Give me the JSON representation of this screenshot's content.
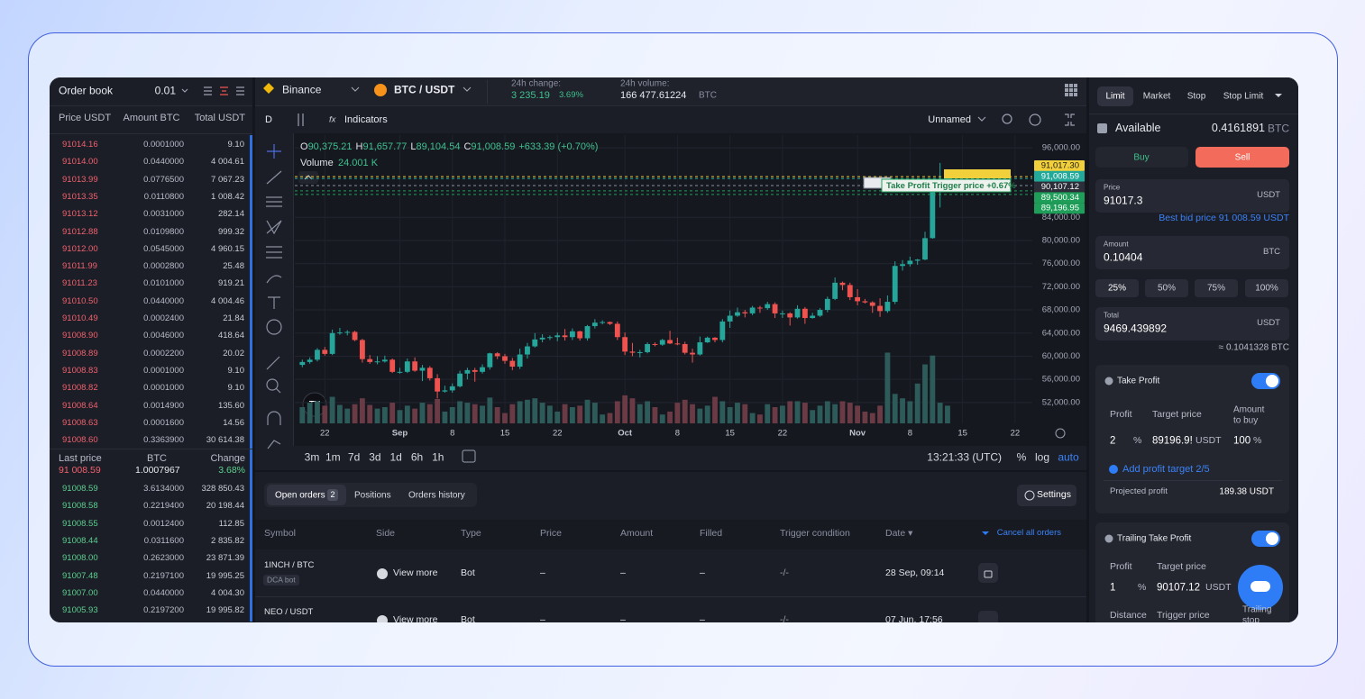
{
  "order_book": {
    "title": "Order book",
    "step": "0.01",
    "columns": [
      "Price USDT",
      "Amount BTC",
      "Total USDT"
    ],
    "asks": [
      [
        "91014.16",
        "0.0001000",
        "9.10"
      ],
      [
        "91014.00",
        "0.0440000",
        "4 004.61"
      ],
      [
        "91013.99",
        "0.0776500",
        "7 067.23"
      ],
      [
        "91013.35",
        "0.0110800",
        "1 008.42"
      ],
      [
        "91013.12",
        "0.0031000",
        "282.14"
      ],
      [
        "91012.88",
        "0.0109800",
        "999.32"
      ],
      [
        "91012.00",
        "0.0545000",
        "4 960.15"
      ],
      [
        "91011.99",
        "0.0002800",
        "25.48"
      ],
      [
        "91011.23",
        "0.0101000",
        "919.21"
      ],
      [
        "91010.50",
        "0.0440000",
        "4 004.46"
      ],
      [
        "91010.49",
        "0.0002400",
        "21.84"
      ],
      [
        "91008.90",
        "0.0046000",
        "418.64"
      ],
      [
        "91008.89",
        "0.0002200",
        "20.02"
      ],
      [
        "91008.83",
        "0.0001000",
        "9.10"
      ],
      [
        "91008.82",
        "0.0001000",
        "9.10"
      ],
      [
        "91008.64",
        "0.0014900",
        "135.60"
      ],
      [
        "91008.63",
        "0.0001600",
        "14.56"
      ],
      [
        "91008.60",
        "0.3363900",
        "30 614.38"
      ]
    ],
    "summary_labels": [
      "Last price",
      "BTC",
      "Change"
    ],
    "summary_values": [
      "91 008.59",
      "1.0007967",
      "3.68%"
    ],
    "bids": [
      [
        "91008.59",
        "3.6134000",
        "328 850.43"
      ],
      [
        "91008.58",
        "0.2219400",
        "20 198.44"
      ],
      [
        "91008.55",
        "0.0012400",
        "112.85"
      ],
      [
        "91008.44",
        "0.0311600",
        "2 835.82"
      ],
      [
        "91008.00",
        "0.2623000",
        "23 871.39"
      ],
      [
        "91007.48",
        "0.2197100",
        "19 995.25"
      ],
      [
        "91007.00",
        "0.0440000",
        "4 004.30"
      ],
      [
        "91005.93",
        "0.2197200",
        "19 995.82"
      ]
    ]
  },
  "top_bar": {
    "exchange": "Binance",
    "pair": "BTC / USDT",
    "change_label": "24h change:",
    "change_value": "3 235.19",
    "change_pct": "3.69%",
    "volume_label": "24h volume:",
    "volume_value": "166 477.61224",
    "volume_unit": "BTC"
  },
  "chart_toolbar": {
    "interval": "D",
    "indicators": "Indicators",
    "layout": "Unnamed"
  },
  "chart_data": {
    "type": "candlestick",
    "legend": [
      {
        "key": "O",
        "value": "90,375.21"
      },
      {
        "key": "H",
        "value": "91,657.77"
      },
      {
        "key": "L",
        "value": "89,104.54"
      },
      {
        "key": "C",
        "value": "91,008.59"
      }
    ],
    "change": "+633.39 (+0.70%)",
    "volume_label": "Volume",
    "volume_value": "24.001 K",
    "colors": {
      "up": "#26a69a",
      "down": "#ef5350",
      "volume_up": "#2d5b5a",
      "volume_down": "#6a3a45"
    },
    "grid": true,
    "xlim": [
      -1,
      97.3
    ],
    "xticks": [
      {
        "value": 3,
        "label": "22"
      },
      {
        "value": 13,
        "label": "Sep"
      },
      {
        "value": 20,
        "label": "8"
      },
      {
        "value": 27,
        "label": "15"
      },
      {
        "value": 34,
        "label": "22"
      },
      {
        "value": 43,
        "label": "Oct"
      },
      {
        "value": 50,
        "label": "8"
      },
      {
        "value": 57,
        "label": "15"
      },
      {
        "value": 64,
        "label": "22"
      },
      {
        "value": 74,
        "label": "Nov"
      },
      {
        "value": 81,
        "label": "8"
      },
      {
        "value": 88,
        "label": "15"
      },
      {
        "value": 95,
        "label": "22"
      }
    ],
    "ylim": [
      48400,
      98200
    ],
    "yticks": [
      {
        "value": 96000,
        "label": "96,000.00"
      },
      {
        "value": 84000,
        "label": "84,000.00"
      },
      {
        "value": 80000,
        "label": "80,000.00"
      },
      {
        "value": 76000,
        "label": "76,000.00"
      },
      {
        "value": 72000,
        "label": "72,000.00"
      },
      {
        "value": 68000,
        "label": "68,000.00"
      },
      {
        "value": 64000,
        "label": "64,000.00"
      },
      {
        "value": 60000,
        "label": "60,000.00"
      },
      {
        "value": 56000,
        "label": "56,000.00"
      },
      {
        "value": 52000,
        "label": "52,000.00"
      }
    ],
    "vlim": [
      0,
      110
    ],
    "candles": [
      [
        58500,
        59400,
        58100,
        59000
      ],
      [
        59000,
        59800,
        58700,
        59400
      ],
      [
        59400,
        61400,
        59100,
        61100
      ],
      [
        61100,
        61600,
        60100,
        60400
      ],
      [
        60400,
        64600,
        60200,
        64000
      ],
      [
        64000,
        64900,
        63700,
        64100
      ],
      [
        64100,
        64500,
        63600,
        64200
      ],
      [
        64200,
        64400,
        62600,
        62800
      ],
      [
        62800,
        63000,
        58900,
        59500
      ],
      [
        59500,
        60200,
        58700,
        59000
      ],
      [
        59000,
        60000,
        58600,
        59100
      ],
      [
        59100,
        60100,
        58900,
        59400
      ],
      [
        59400,
        59600,
        57100,
        57300
      ],
      [
        57300,
        58000,
        57000,
        57300
      ],
      [
        57300,
        59600,
        57100,
        59100
      ],
      [
        59100,
        59800,
        57300,
        57500
      ],
      [
        57500,
        58500,
        55700,
        58000
      ],
      [
        58000,
        58300,
        55800,
        56200
      ],
      [
        56200,
        56900,
        52700,
        53900
      ],
      [
        53900,
        54900,
        53700,
        54100
      ],
      [
        54100,
        55300,
        53700,
        54800
      ],
      [
        54800,
        57500,
        54600,
        57000
      ],
      [
        57000,
        58000,
        56000,
        57600
      ],
      [
        57600,
        58000,
        55600,
        57300
      ],
      [
        57300,
        58600,
        57000,
        58100
      ],
      [
        58100,
        60600,
        57700,
        60500
      ],
      [
        60500,
        60700,
        59500,
        60000
      ],
      [
        60000,
        60400,
        58700,
        59200
      ],
      [
        59200,
        59700,
        57600,
        58200
      ],
      [
        58200,
        61300,
        57800,
        60300
      ],
      [
        60300,
        62300,
        59600,
        61700
      ],
      [
        61700,
        64000,
        61500,
        62900
      ],
      [
        62900,
        63800,
        62400,
        63200
      ],
      [
        63200,
        63600,
        62800,
        63300
      ],
      [
        63300,
        64100,
        62600,
        63600
      ],
      [
        63600,
        64700,
        62700,
        63300
      ],
      [
        63300,
        64800,
        62800,
        64300
      ],
      [
        64300,
        64400,
        62700,
        63100
      ],
      [
        63100,
        65400,
        62700,
        65200
      ],
      [
        65200,
        66400,
        64800,
        65800
      ],
      [
        65800,
        66200,
        65500,
        65900
      ],
      [
        65900,
        66000,
        65400,
        65600
      ],
      [
        65600,
        66000,
        62800,
        63300
      ],
      [
        63300,
        64100,
        60200,
        60800
      ],
      [
        60800,
        62300,
        60000,
        60600
      ],
      [
        60600,
        61100,
        59800,
        60700
      ],
      [
        60700,
        62400,
        60500,
        62100
      ],
      [
        62100,
        62400,
        61700,
        62000
      ],
      [
        62000,
        63000,
        61800,
        62800
      ],
      [
        62800,
        64400,
        62100,
        62200
      ],
      [
        62200,
        63200,
        61900,
        62100
      ],
      [
        62100,
        62500,
        60300,
        60600
      ],
      [
        60600,
        61300,
        58900,
        60300
      ],
      [
        60300,
        63400,
        60100,
        62400
      ],
      [
        62400,
        63400,
        62300,
        63200
      ],
      [
        63200,
        63300,
        62400,
        62800
      ],
      [
        62800,
        66400,
        62400,
        66000
      ],
      [
        66000,
        67900,
        64900,
        67000
      ],
      [
        67000,
        68400,
        66800,
        67600
      ],
      [
        67600,
        68000,
        66700,
        67400
      ],
      [
        67400,
        68700,
        67100,
        68400
      ],
      [
        68400,
        68700,
        67500,
        68300
      ],
      [
        68300,
        69400,
        68000,
        69000
      ],
      [
        69000,
        69300,
        66600,
        67400
      ],
      [
        67400,
        67900,
        66600,
        67400
      ],
      [
        67400,
        67600,
        65300,
        66700
      ],
      [
        66700,
        68800,
        66500,
        68200
      ],
      [
        68200,
        68500,
        65600,
        66600
      ],
      [
        66600,
        67500,
        66500,
        67000
      ],
      [
        67000,
        68300,
        66800,
        68000
      ],
      [
        68000,
        70300,
        67600,
        69900
      ],
      [
        69900,
        73600,
        69700,
        72700
      ],
      [
        72700,
        72900,
        71400,
        72300
      ],
      [
        72300,
        72700,
        69700,
        70200
      ],
      [
        70200,
        71600,
        68800,
        69500
      ],
      [
        69500,
        69900,
        69100,
        69300
      ],
      [
        69300,
        69500,
        67500,
        68700
      ],
      [
        68700,
        70000,
        66800,
        67800
      ],
      [
        67800,
        70500,
        67500,
        69400
      ],
      [
        69400,
        76400,
        69000,
        75600
      ],
      [
        75600,
        76600,
        74800,
        75900
      ],
      [
        75900,
        77200,
        75500,
        76500
      ],
      [
        76500,
        76800,
        75800,
        76700
      ],
      [
        76700,
        81500,
        76600,
        80400
      ],
      [
        80400,
        89900,
        80300,
        88700
      ],
      [
        88700,
        93400,
        85700,
        90400
      ],
      [
        90375.21,
        91657.77,
        89104.54,
        91008.59
      ]
    ],
    "volumes": [
      22,
      28,
      30,
      24,
      36,
      25,
      20,
      26,
      34,
      25,
      20,
      22,
      28,
      18,
      24,
      20,
      28,
      26,
      33,
      16,
      22,
      30,
      28,
      26,
      24,
      35,
      22,
      14,
      26,
      30,
      32,
      34,
      28,
      24,
      16,
      26,
      22,
      24,
      32,
      28,
      12,
      14,
      30,
      38,
      34,
      26,
      30,
      22,
      12,
      16,
      28,
      32,
      26,
      20,
      24,
      36,
      30,
      22,
      28,
      26,
      14,
      12,
      26,
      22,
      24,
      30,
      30,
      28,
      18,
      24,
      30,
      26,
      30,
      28,
      24,
      16,
      14,
      24,
      96,
      40,
      34,
      30,
      54,
      80,
      92,
      28,
      24.001
    ],
    "price_lines": [
      {
        "value": 91017.3,
        "label": "91,017.30",
        "color": "#f2d03b",
        "text_color": "#1a1a1a"
      },
      {
        "value": 91008.59,
        "label": "91,008.59",
        "color": "#22a99a",
        "text_color": "#ffffff"
      },
      {
        "value": 90107.12,
        "label": "90,107.12",
        "color": "#2c2f3a",
        "text_color": "#ffffff"
      },
      {
        "value": 89500.34,
        "label": "89,500.34",
        "color": "#1e9e58",
        "text_color": "#ffffff"
      },
      {
        "value": 89196.95,
        "label": "89,196.95",
        "color": "#1e9e58",
        "text_color": "#ffffff"
      }
    ],
    "annotation": "Take Profit Trigger price +0.67%"
  },
  "chart_footer": {
    "intervals": [
      "3m",
      "1m",
      "7d",
      "3d",
      "1d",
      "6h",
      "1h"
    ],
    "time": "13:21:33 (UTC)",
    "options": [
      "%",
      "log",
      "auto"
    ]
  },
  "orders": {
    "tabs": [
      "Open orders",
      "Positions",
      "Orders history"
    ],
    "badge": "2",
    "settings": "Settings",
    "columns": [
      "Symbol",
      "Side",
      "Type",
      "Price",
      "Amount",
      "Filled",
      "Trigger condition",
      "Date ▾"
    ],
    "cancel_all": "Cancel all orders",
    "rows": [
      {
        "symbol": "1INCH / BTC",
        "tag": "DCA bot",
        "side": "View more",
        "type": "Bot",
        "price": "–",
        "amount": "–",
        "filled": "–",
        "trigger": "-/-",
        "date": "28 Sep, 09:14"
      },
      {
        "symbol": "NEO / USDT",
        "side": "View more",
        "type": "Bot",
        "price": "–",
        "amount": "–",
        "filled": "–",
        "trigger": "-/-",
        "date": "07 Jun, 17:56"
      }
    ]
  },
  "trade_panel": {
    "tabs": [
      "Limit",
      "Market",
      "Stop",
      "Stop Limit"
    ],
    "available_label": "Available",
    "available_value": "0.4161891",
    "available_unit": "BTC",
    "buy": "Buy",
    "sell": "Sell",
    "price_label": "Price",
    "price_value": "91017.3",
    "price_unit": "USDT",
    "best_bid": "Best bid price 91 008.59 USDT",
    "amount_label": "Amount",
    "amount_value": "0.10404",
    "amount_unit": "BTC",
    "percents": [
      "25%",
      "50%",
      "75%",
      "100%"
    ],
    "total_label": "Total",
    "total_value": "9469.439892",
    "total_unit": "USDT",
    "total_btc": "≈ 0.1041328 BTC",
    "take_profit": {
      "title": "Take Profit",
      "profit_label": "Profit",
      "target_label": "Target price",
      "amount_label": [
        "Amount",
        "to buy"
      ],
      "profit": "2",
      "pct": "%",
      "target": "89196.9!",
      "unit": "USDT",
      "amount": "100",
      "amount_pct": "%",
      "add": "Add profit target 2/5",
      "projected_label": "Projected profit",
      "projected_value": "189.38 USDT"
    },
    "trailing": {
      "title": "Trailing Take Profit",
      "profit_label": "Profit",
      "target_label": "Target price",
      "profit": "1",
      "pct": "%",
      "target": "90107.12",
      "unit": "USDT",
      "distance_label": "Distance",
      "trigger_label": "Trigger price",
      "stop_label": [
        "Trailing",
        "stop"
      ]
    }
  }
}
